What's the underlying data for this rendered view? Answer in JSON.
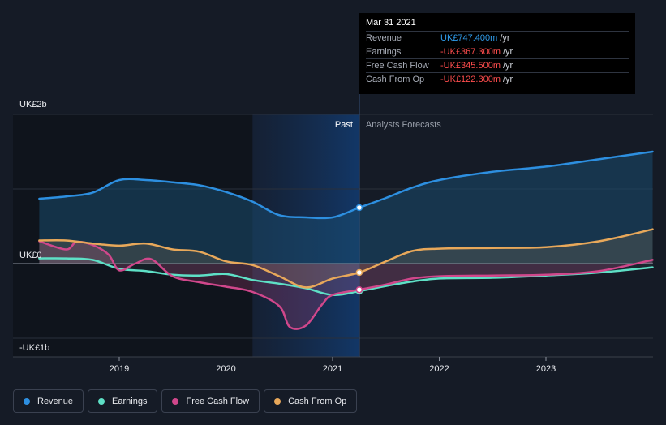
{
  "chart_data": {
    "type": "line",
    "currency_unit": "UK£",
    "y_tick_labels": [
      "UK£2b",
      "UK£0",
      "-UK£1b"
    ],
    "x_tick_labels": [
      "2019",
      "2020",
      "2021",
      "2022",
      "2023"
    ],
    "ylim": [
      -1,
      2
    ],
    "past_label": "Past",
    "forecast_label": "Analysts Forecasts",
    "divider_x": 2021.25,
    "highlight_range": [
      2020.25,
      2021.25
    ],
    "series": [
      {
        "name": "Revenue",
        "color": "#2d8fe0",
        "points": [
          [
            2018.25,
            0.87
          ],
          [
            2018.5,
            0.9
          ],
          [
            2018.75,
            0.95
          ],
          [
            2019.0,
            1.12
          ],
          [
            2019.25,
            1.12
          ],
          [
            2019.5,
            1.09
          ],
          [
            2019.75,
            1.05
          ],
          [
            2020.0,
            0.96
          ],
          [
            2020.25,
            0.83
          ],
          [
            2020.5,
            0.65
          ],
          [
            2020.75,
            0.62
          ],
          [
            2021.0,
            0.62
          ],
          [
            2021.25,
            0.75
          ],
          [
            2021.5,
            0.88
          ],
          [
            2021.75,
            1.02
          ],
          [
            2022.0,
            1.12
          ],
          [
            2022.5,
            1.23
          ],
          [
            2023.0,
            1.3
          ],
          [
            2023.5,
            1.4
          ],
          [
            2024.0,
            1.5
          ]
        ]
      },
      {
        "name": "Earnings",
        "color": "#5ee0c6",
        "points": [
          [
            2018.25,
            0.07
          ],
          [
            2018.5,
            0.07
          ],
          [
            2018.75,
            0.05
          ],
          [
            2019.0,
            -0.07
          ],
          [
            2019.25,
            -0.1
          ],
          [
            2019.5,
            -0.15
          ],
          [
            2019.75,
            -0.16
          ],
          [
            2020.0,
            -0.14
          ],
          [
            2020.25,
            -0.22
          ],
          [
            2020.5,
            -0.27
          ],
          [
            2020.75,
            -0.33
          ],
          [
            2021.0,
            -0.42
          ],
          [
            2021.25,
            -0.37
          ],
          [
            2021.5,
            -0.3
          ],
          [
            2021.75,
            -0.24
          ],
          [
            2022.0,
            -0.2
          ],
          [
            2022.5,
            -0.19
          ],
          [
            2023.0,
            -0.16
          ],
          [
            2023.5,
            -0.12
          ],
          [
            2024.0,
            -0.05
          ]
        ]
      },
      {
        "name": "Free Cash Flow",
        "color": "#d0478b",
        "points": [
          [
            2018.25,
            0.3
          ],
          [
            2018.5,
            0.19
          ],
          [
            2018.6,
            0.29
          ],
          [
            2018.75,
            0.25
          ],
          [
            2018.9,
            0.12
          ],
          [
            2019.0,
            -0.09
          ],
          [
            2019.15,
            0.0
          ],
          [
            2019.3,
            0.06
          ],
          [
            2019.5,
            -0.17
          ],
          [
            2019.75,
            -0.25
          ],
          [
            2020.0,
            -0.31
          ],
          [
            2020.25,
            -0.38
          ],
          [
            2020.5,
            -0.57
          ],
          [
            2020.6,
            -0.85
          ],
          [
            2020.75,
            -0.83
          ],
          [
            2020.9,
            -0.55
          ],
          [
            2021.0,
            -0.42
          ],
          [
            2021.25,
            -0.35
          ],
          [
            2021.5,
            -0.28
          ],
          [
            2021.75,
            -0.2
          ],
          [
            2022.0,
            -0.17
          ],
          [
            2022.5,
            -0.16
          ],
          [
            2023.0,
            -0.15
          ],
          [
            2023.5,
            -0.1
          ],
          [
            2024.0,
            0.05
          ]
        ]
      },
      {
        "name": "Cash From Op",
        "color": "#e8a85a",
        "points": [
          [
            2018.25,
            0.31
          ],
          [
            2018.5,
            0.31
          ],
          [
            2018.75,
            0.27
          ],
          [
            2019.0,
            0.24
          ],
          [
            2019.25,
            0.27
          ],
          [
            2019.5,
            0.19
          ],
          [
            2019.75,
            0.16
          ],
          [
            2020.0,
            0.03
          ],
          [
            2020.25,
            -0.02
          ],
          [
            2020.5,
            -0.17
          ],
          [
            2020.75,
            -0.32
          ],
          [
            2021.0,
            -0.2
          ],
          [
            2021.25,
            -0.12
          ],
          [
            2021.5,
            0.03
          ],
          [
            2021.75,
            0.17
          ],
          [
            2022.0,
            0.2
          ],
          [
            2022.5,
            0.21
          ],
          [
            2023.0,
            0.22
          ],
          [
            2023.5,
            0.3
          ],
          [
            2024.0,
            0.46
          ]
        ]
      }
    ]
  },
  "tooltip": {
    "date": "Mar 31 2021",
    "rows": [
      {
        "name": "Revenue",
        "value": "UK£747.400m",
        "unit": "/yr",
        "tone": "pos"
      },
      {
        "name": "Earnings",
        "value": "-UK£367.300m",
        "unit": "/yr",
        "tone": "neg"
      },
      {
        "name": "Free Cash Flow",
        "value": "-UK£345.500m",
        "unit": "/yr",
        "tone": "neg"
      },
      {
        "name": "Cash From Op",
        "value": "-UK£122.300m",
        "unit": "/yr",
        "tone": "neg"
      }
    ]
  },
  "legend": [
    {
      "label": "Revenue",
      "color": "#2d8fe0"
    },
    {
      "label": "Earnings",
      "color": "#5ee0c6"
    },
    {
      "label": "Free Cash Flow",
      "color": "#d0478b"
    },
    {
      "label": "Cash From Op",
      "color": "#e8a85a"
    }
  ]
}
